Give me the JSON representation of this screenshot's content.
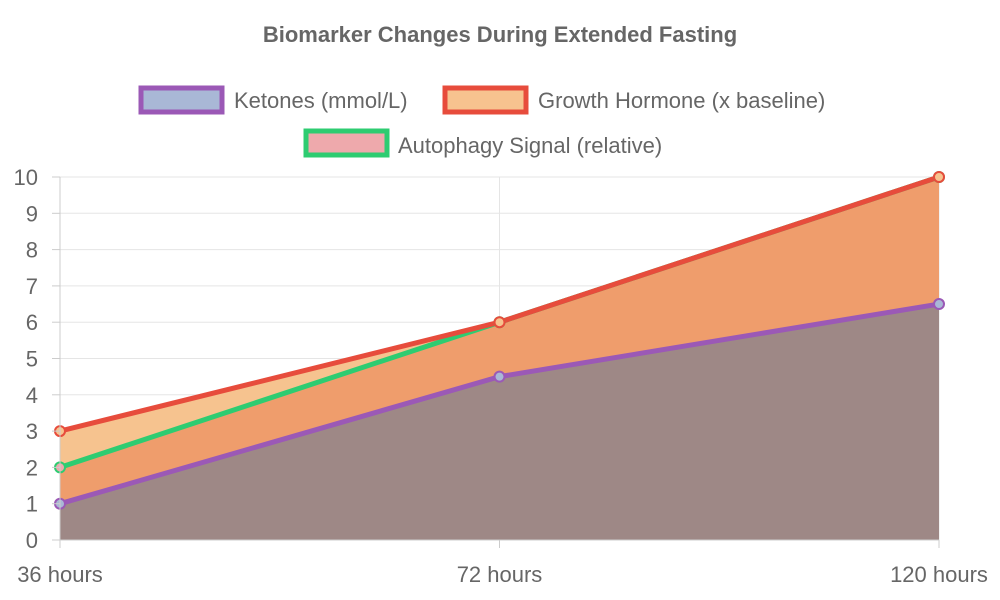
{
  "chart_data": {
    "type": "area",
    "title": "Biomarker Changes During Extended Fasting",
    "categories": [
      "36 hours",
      "72 hours",
      "120 hours"
    ],
    "y_ticks": [
      "0",
      "1",
      "2",
      "3",
      "4",
      "5",
      "6",
      "7",
      "8",
      "9",
      "10"
    ],
    "ylim": [
      0,
      10
    ],
    "grid": true,
    "legend_position": "top",
    "series": [
      {
        "name": "Ketones (mmol/L)",
        "values": [
          1,
          4.5,
          6.5
        ],
        "line_color": "#9b59b6",
        "fill_color": "#a9b8d6"
      },
      {
        "name": "Growth Hormone (x baseline)",
        "values": [
          3,
          6,
          10
        ],
        "line_color": "#e74c3c",
        "fill_color": "#f7c38f"
      },
      {
        "name": "Autophagy Signal (relative)",
        "values": [
          2,
          6,
          10
        ],
        "line_color": "#2ecc71",
        "fill_color": "#eea9ac"
      }
    ]
  },
  "colors": {
    "title": "#666666",
    "text": "#666666",
    "grid": "#e5e5e5",
    "axis": "#cccccc",
    "ketones_area": "#9e8886",
    "autophagy_band": "#ef9d6c",
    "growth_band": "#f6c38f",
    "background": "#ffffff"
  }
}
